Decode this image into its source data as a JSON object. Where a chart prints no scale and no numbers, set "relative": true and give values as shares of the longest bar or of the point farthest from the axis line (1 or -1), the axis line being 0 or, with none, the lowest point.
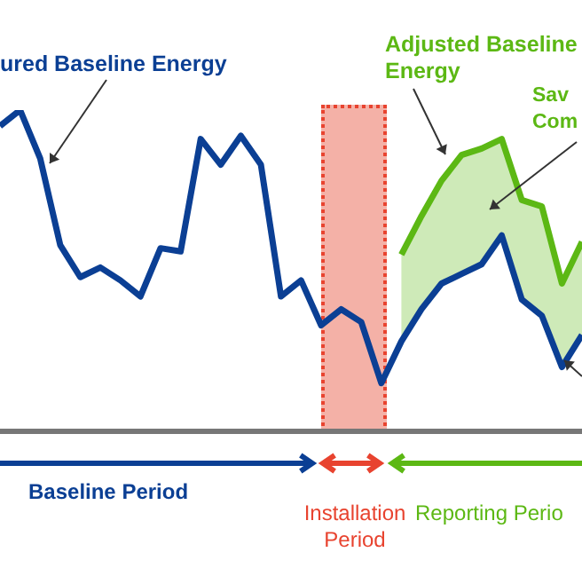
{
  "chart_data": {
    "type": "line",
    "relative": true,
    "marker": "none",
    "line_style": "solid",
    "categories": [
      null,
      null,
      null,
      null,
      null,
      null,
      null,
      null,
      null,
      null,
      null,
      null,
      null,
      null,
      null,
      null,
      null,
      null,
      null,
      null,
      null,
      null,
      null,
      null,
      null,
      null,
      null,
      null,
      null,
      null
    ],
    "series": [
      {
        "color": "#0b3f94",
        "values": [
          0.95,
          1.0,
          0.85,
          0.58,
          0.48,
          0.51,
          0.47,
          0.42,
          0.57,
          0.56,
          0.91,
          0.83,
          0.92,
          0.83,
          0.42,
          0.47,
          0.33,
          0.38,
          0.34,
          0.15,
          0.28,
          0.38,
          0.46,
          0.49,
          0.52,
          0.61,
          0.41,
          0.36,
          0.2,
          0.3
        ]
      },
      {
        "color": "#5cb814",
        "values": [
          null,
          null,
          null,
          null,
          null,
          null,
          null,
          null,
          null,
          null,
          null,
          null,
          null,
          null,
          null,
          null,
          null,
          null,
          null,
          null,
          0.55,
          0.67,
          0.78,
          0.86,
          0.88,
          0.91,
          0.72,
          0.7,
          0.46,
          0.59
        ],
        "lower": [
          null,
          null,
          null,
          null,
          null,
          null,
          null,
          null,
          null,
          null,
          null,
          null,
          null,
          null,
          null,
          null,
          null,
          null,
          null,
          null,
          0.28,
          0.38,
          0.46,
          0.49,
          0.52,
          0.61,
          0.41,
          0.36,
          0.2,
          0.3
        ],
        "upper": [
          null,
          null,
          null,
          null,
          null,
          null,
          null,
          null,
          null,
          null,
          null,
          null,
          null,
          null,
          null,
          null,
          null,
          null,
          null,
          null,
          0.55,
          0.67,
          0.78,
          0.86,
          0.88,
          0.91,
          0.72,
          0.7,
          0.46,
          0.59
        ]
      }
    ],
    "annotations": [
      "ured Baseline Energy",
      "Adjusted Baseline Energy",
      "Sav Com",
      "Baseline Period",
      "Installation Period",
      "Reporting Perio"
    ]
  }
}
